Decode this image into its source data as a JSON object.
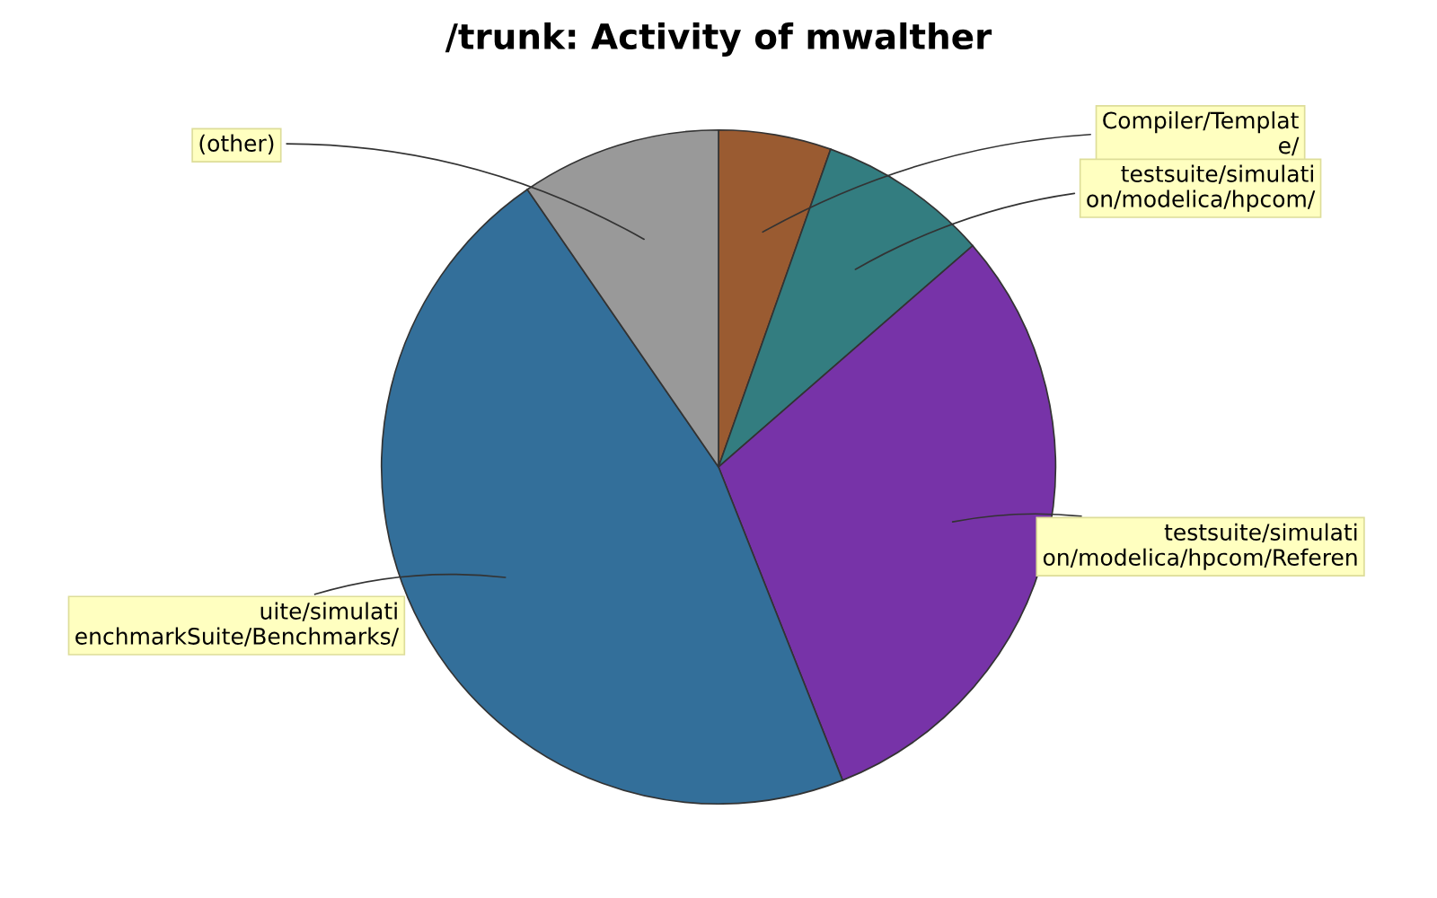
{
  "chart_data": {
    "type": "pie",
    "title": "/trunk: Activity of mwalther",
    "categories": [
      "Compiler/Templat\ne/",
      "testsuite/simulati\non/modelica/hpcom/",
      "testsuite/simulati\non/modelica/hpcom/Referen",
      "uite/simulati\nenchmarkSuite/Benchmarks/",
      "(other)"
    ],
    "values": [
      5.4,
      8.2,
      30.4,
      46.4,
      9.6
    ],
    "colors": [
      "#9a5b31",
      "#337d80",
      "#7733a8",
      "#336f9a",
      "#999999"
    ],
    "legend": false
  }
}
